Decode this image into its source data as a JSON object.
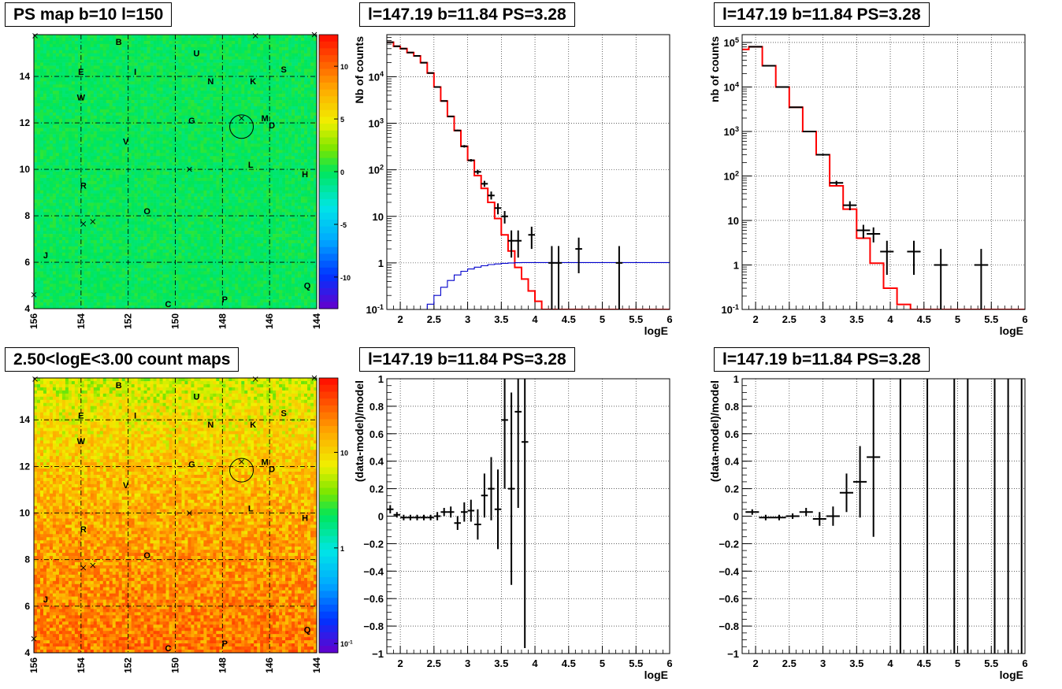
{
  "panels": {
    "map_top": {
      "title": "PS map b=10 l=150"
    },
    "spec_top": {
      "title": "l=147.19 b=11.84 PS=3.28"
    },
    "spec_top_right": {
      "title": "l=147.19 b=11.84 PS=3.28"
    },
    "map_bottom": {
      "title": "2.50<logE<3.00 count maps"
    },
    "ratio_bottom": {
      "title": "l=147.19 b=11.84 PS=3.28"
    },
    "ratio_bottom_right": {
      "title": "l=147.19 b=11.84 PS=3.28"
    }
  },
  "colors": {
    "model_line": "#ff0000",
    "acceptance_line": "#0000cc",
    "data_points": "#000000",
    "grid": "#000000"
  },
  "chart_data": [
    {
      "id": "map_top",
      "type": "heatmap",
      "title": "PS map b=10 l=150",
      "x_ticks": [
        "156",
        "154",
        "152",
        "150",
        "148",
        "146",
        "144"
      ],
      "y_ticks": [
        "4",
        "6",
        "8",
        "10",
        "12",
        "14"
      ],
      "xlim": [
        156,
        144
      ],
      "ylim": [
        4,
        15.8
      ],
      "color_scale": "linear",
      "zlim": [
        -13,
        13
      ],
      "z_ticks": [
        "10",
        "5",
        "0",
        "-5",
        "-10"
      ],
      "z_tick_values": [
        10,
        5,
        0,
        -5,
        -10
      ],
      "background_value": 0,
      "labels": [
        {
          "t": "B",
          "l": 152.4,
          "b": 15.5
        },
        {
          "t": "U",
          "l": 149.1,
          "b": 15.0
        },
        {
          "t": "S",
          "l": 145.4,
          "b": 14.3
        },
        {
          "t": "E",
          "l": 154.0,
          "b": 14.2
        },
        {
          "t": "I",
          "l": 151.7,
          "b": 14.2
        },
        {
          "t": "N",
          "l": 148.5,
          "b": 13.8
        },
        {
          "t": "K",
          "l": 146.7,
          "b": 13.8
        },
        {
          "t": "W",
          "l": 154.0,
          "b": 13.1
        },
        {
          "t": "G",
          "l": 149.3,
          "b": 12.1
        },
        {
          "t": "M",
          "l": 146.2,
          "b": 12.2
        },
        {
          "t": "D",
          "l": 145.9,
          "b": 11.9
        },
        {
          "t": "V",
          "l": 152.1,
          "b": 11.2
        },
        {
          "t": "L",
          "l": 146.8,
          "b": 10.2
        },
        {
          "t": "H",
          "l": 144.5,
          "b": 9.8
        },
        {
          "t": "R",
          "l": 153.9,
          "b": 9.3
        },
        {
          "t": "O",
          "l": 151.2,
          "b": 8.2
        },
        {
          "t": "J",
          "l": 155.5,
          "b": 6.3
        },
        {
          "t": "Q",
          "l": 144.4,
          "b": 5.0
        },
        {
          "t": "C",
          "l": 150.3,
          "b": 4.2
        },
        {
          "t": "P",
          "l": 147.9,
          "b": 4.4
        }
      ],
      "crosses": [
        {
          "l": 155.95,
          "b": 15.75
        },
        {
          "l": 146.6,
          "b": 15.75
        },
        {
          "l": 144.1,
          "b": 15.8
        },
        {
          "l": 149.4,
          "b": 10.0
        },
        {
          "l": 153.9,
          "b": 7.65
        },
        {
          "l": 153.5,
          "b": 7.75
        },
        {
          "l": 156.0,
          "b": 4.6
        },
        {
          "l": 147.19,
          "b": 12.2
        }
      ],
      "circle": {
        "l": 147.19,
        "b": 11.84,
        "r": 0.5
      }
    },
    {
      "id": "spec_top",
      "type": "line",
      "title": "l=147.19 b=11.84 PS=3.28",
      "xlabel": "logE",
      "ylabel": "Nb of counts",
      "xlim": [
        1.8,
        6.0
      ],
      "ylim": [
        0.1,
        80000
      ],
      "yscale": "log",
      "x_ticks": [
        "2",
        "2.5",
        "3",
        "3.5",
        "4",
        "4.5",
        "5",
        "5.5",
        "6"
      ],
      "y_ticks": [
        "10^{-1}",
        "1",
        "10",
        "10^{2}",
        "10^{3}",
        "10^{4}"
      ],
      "series": [
        {
          "style": "step",
          "color": "#ff0000",
          "edges": [
            1.8,
            1.9,
            2.0,
            2.1,
            2.2,
            2.3,
            2.4,
            2.5,
            2.6,
            2.7,
            2.8,
            2.9,
            3.0,
            3.1,
            3.2,
            3.3,
            3.4,
            3.5,
            3.6,
            3.7,
            3.8,
            3.9,
            4.0,
            4.1,
            4.2,
            4.3,
            6.0
          ],
          "values": [
            55000,
            45000,
            40000,
            33000,
            28000,
            20000,
            12000,
            6000,
            3000,
            1400,
            700,
            320,
            160,
            75,
            40,
            20,
            9,
            4,
            1.8,
            0.8,
            0.45,
            0.25,
            0.15,
            0.1,
            0.1,
            0.1
          ]
        },
        {
          "style": "step",
          "color": "#0000cc",
          "edges": [
            1.8,
            2.3,
            2.4,
            2.5,
            2.6,
            2.7,
            2.8,
            2.9,
            3.0,
            3.1,
            3.2,
            3.3,
            3.4,
            3.5,
            3.6,
            3.7,
            3.8,
            3.9,
            6.0
          ],
          "values": [
            0.08,
            0.1,
            0.13,
            0.2,
            0.3,
            0.42,
            0.55,
            0.66,
            0.74,
            0.81,
            0.87,
            0.92,
            0.95,
            0.98,
            1.0,
            1.01,
            1.02,
            1.02
          ]
        },
        {
          "style": "points",
          "color": "#000000",
          "x": [
            1.85,
            1.95,
            2.05,
            2.15,
            2.25,
            2.35,
            2.45,
            2.55,
            2.65,
            2.75,
            2.85,
            2.95,
            3.05,
            3.15,
            3.25,
            3.35,
            3.45,
            3.55,
            3.65,
            3.75,
            3.95,
            4.25,
            4.35,
            4.65,
            5.25
          ],
          "y": [
            55000,
            45000,
            40000,
            33000,
            28000,
            20000,
            12000,
            6000,
            3000,
            1400,
            700,
            320,
            160,
            90,
            50,
            28,
            15,
            10,
            3,
            3,
            4,
            1,
            1,
            2,
            1
          ],
          "ylo": [
            53000,
            43500,
            38500,
            32000,
            27000,
            19500,
            11600,
            5800,
            2900,
            1350,
            670,
            300,
            150,
            80,
            43,
            23,
            11,
            7,
            1.3,
            1.3,
            2,
            0.01,
            0.01,
            0.6,
            0.01
          ],
          "yhi": [
            57000,
            46500,
            41500,
            34000,
            29000,
            20500,
            12400,
            6200,
            3100,
            1450,
            730,
            340,
            170,
            100,
            58,
            34,
            19,
            13,
            5,
            5,
            6,
            2.3,
            2.3,
            3.5,
            2.3
          ],
          "xerr": 0.05
        }
      ]
    },
    {
      "id": "spec_top_right",
      "type": "line",
      "title": "l=147.19 b=11.84 PS=3.28",
      "xlabel": "logE",
      "ylabel": "nb of counts",
      "xlim": [
        1.8,
        6.0
      ],
      "ylim": [
        0.1,
        150000
      ],
      "yscale": "log",
      "x_ticks": [
        "2",
        "2.5",
        "3",
        "3.5",
        "4",
        "4.5",
        "5",
        "5.5",
        "6"
      ],
      "y_ticks": [
        "10^{-1}",
        "1",
        "10",
        "10^{2}",
        "10^{3}",
        "10^{4}",
        "10^{5}"
      ],
      "series": [
        {
          "style": "step",
          "color": "#ff0000",
          "edges": [
            1.8,
            1.9,
            2.1,
            2.3,
            2.5,
            2.7,
            2.9,
            3.1,
            3.3,
            3.5,
            3.7,
            3.9,
            4.1,
            4.3,
            4.5,
            4.7,
            6.0
          ],
          "values": [
            70000,
            80000,
            30000,
            10000,
            3500,
            1000,
            300,
            60,
            18,
            4,
            1.1,
            0.3,
            0.13,
            0.1,
            0.1,
            0.1
          ]
        },
        {
          "style": "points",
          "color": "#000000",
          "x": [
            2.0,
            2.2,
            2.4,
            2.6,
            2.8,
            3.0,
            3.2,
            3.4,
            3.6,
            3.75,
            3.95,
            4.35,
            4.75,
            5.35
          ],
          "y": [
            80000,
            30000,
            10000,
            3500,
            1000,
            300,
            70,
            22,
            6,
            5,
            2,
            2,
            1,
            1
          ],
          "ylo": [
            78000,
            29500,
            9800,
            3400,
            970,
            285,
            62,
            17,
            4,
            3.2,
            0.6,
            0.6,
            0.01,
            0.01
          ],
          "yhi": [
            82000,
            30500,
            10200,
            3600,
            1030,
            315,
            78,
            27,
            8,
            7,
            3.5,
            3.5,
            2.3,
            2.3
          ],
          "xerr": 0.1
        }
      ]
    },
    {
      "id": "map_bottom",
      "type": "heatmap",
      "title": "2.50<logE<3.00 count maps",
      "x_ticks": [
        "156",
        "154",
        "152",
        "150",
        "148",
        "146",
        "144"
      ],
      "y_ticks": [
        "4",
        "6",
        "8",
        "10",
        "12",
        "14"
      ],
      "xlim": [
        156,
        144
      ],
      "ylim": [
        4,
        15.8
      ],
      "color_scale": "log",
      "zlim": [
        0.08,
        60
      ],
      "z_ticks": [
        "10",
        "1",
        "10^{-1}"
      ],
      "z_tick_values": [
        10,
        1,
        0.1
      ],
      "count_range_top": [
        3,
        9
      ],
      "count_range_bottom": [
        12,
        40
      ],
      "labels": [
        {
          "t": "B",
          "l": 152.4,
          "b": 15.5
        },
        {
          "t": "U",
          "l": 149.1,
          "b": 15.0
        },
        {
          "t": "S",
          "l": 145.4,
          "b": 14.3
        },
        {
          "t": "E",
          "l": 154.0,
          "b": 14.2
        },
        {
          "t": "I",
          "l": 151.7,
          "b": 14.2
        },
        {
          "t": "N",
          "l": 148.5,
          "b": 13.8
        },
        {
          "t": "K",
          "l": 146.7,
          "b": 13.8
        },
        {
          "t": "W",
          "l": 154.0,
          "b": 13.1
        },
        {
          "t": "G",
          "l": 149.3,
          "b": 12.1
        },
        {
          "t": "M",
          "l": 146.2,
          "b": 12.2
        },
        {
          "t": "D",
          "l": 145.9,
          "b": 11.9
        },
        {
          "t": "V",
          "l": 152.1,
          "b": 11.2
        },
        {
          "t": "L",
          "l": 146.8,
          "b": 10.2
        },
        {
          "t": "H",
          "l": 144.5,
          "b": 9.8
        },
        {
          "t": "R",
          "l": 153.9,
          "b": 9.3
        },
        {
          "t": "O",
          "l": 151.2,
          "b": 8.2
        },
        {
          "t": "J",
          "l": 155.5,
          "b": 6.3
        },
        {
          "t": "Q",
          "l": 144.4,
          "b": 5.0
        },
        {
          "t": "C",
          "l": 150.3,
          "b": 4.2
        },
        {
          "t": "P",
          "l": 147.9,
          "b": 4.4
        }
      ],
      "crosses": [
        {
          "l": 155.95,
          "b": 15.75
        },
        {
          "l": 146.6,
          "b": 15.75
        },
        {
          "l": 144.1,
          "b": 15.8
        },
        {
          "l": 149.4,
          "b": 10.0
        },
        {
          "l": 153.9,
          "b": 7.65
        },
        {
          "l": 153.5,
          "b": 7.75
        },
        {
          "l": 156.0,
          "b": 4.6
        },
        {
          "l": 147.19,
          "b": 12.2
        }
      ],
      "circle": {
        "l": 147.19,
        "b": 11.84,
        "r": 0.5
      }
    },
    {
      "id": "ratio_bottom",
      "type": "scatter",
      "title": "l=147.19 b=11.84 PS=3.28",
      "xlabel": "logE",
      "ylabel": "(data-model)/model",
      "xlim": [
        1.8,
        6.0
      ],
      "ylim": [
        -1,
        1
      ],
      "x_ticks": [
        "2",
        "2.5",
        "3",
        "3.5",
        "4",
        "4.5",
        "5",
        "5.5",
        "6"
      ],
      "y_ticks": [
        "−1",
        "−0.8",
        "−0.6",
        "−0.4",
        "−0.2",
        "0",
        "0.2",
        "0.4",
        "0.6",
        "0.8",
        "1"
      ],
      "series": [
        {
          "style": "points",
          "color": "#000000",
          "x": [
            1.85,
            1.95,
            2.05,
            2.15,
            2.25,
            2.35,
            2.45,
            2.55,
            2.65,
            2.75,
            2.85,
            2.95,
            3.05,
            3.15,
            3.25,
            3.35,
            3.45,
            3.55,
            3.65,
            3.75,
            3.85
          ],
          "y": [
            0.05,
            0.01,
            -0.01,
            -0.01,
            -0.01,
            -0.01,
            -0.01,
            0.0,
            0.03,
            0.03,
            -0.05,
            0.03,
            0.04,
            -0.06,
            0.15,
            0.2,
            0.05,
            0.7,
            0.2,
            0.76,
            0.54
          ],
          "yerr": [
            0.03,
            0.02,
            0.02,
            0.02,
            0.02,
            0.02,
            0.02,
            0.03,
            0.03,
            0.04,
            0.05,
            0.07,
            0.08,
            0.11,
            0.16,
            0.23,
            0.29,
            0.5,
            0.7,
            0.7,
            1.5
          ],
          "xerr": 0.05
        }
      ]
    },
    {
      "id": "ratio_bottom_right",
      "type": "scatter",
      "title": "l=147.19 b=11.84 PS=3.28",
      "xlabel": "logE",
      "ylabel": "(data-model)/model",
      "xlim": [
        1.8,
        6.0
      ],
      "ylim": [
        -1,
        1
      ],
      "x_ticks": [
        "2",
        "2.5",
        "3",
        "3.5",
        "4",
        "4.5",
        "5",
        "5.5",
        "6"
      ],
      "y_ticks": [
        "−1",
        "−0.8",
        "−0.6",
        "−0.4",
        "−0.2",
        "0",
        "0.2",
        "0.4",
        "0.6",
        "0.8",
        "1"
      ],
      "series": [
        {
          "style": "points",
          "color": "#000000",
          "x": [
            1.95,
            2.15,
            2.35,
            2.55,
            2.75,
            2.95,
            3.15,
            3.35,
            3.55,
            3.75
          ],
          "y": [
            0.03,
            -0.01,
            -0.01,
            0.0,
            0.03,
            -0.02,
            0.0,
            0.17,
            0.25,
            0.43
          ],
          "yerr": [
            0.02,
            0.02,
            0.02,
            0.02,
            0.03,
            0.05,
            0.07,
            0.14,
            0.26,
            0.58
          ],
          "xerr": 0.1
        },
        {
          "style": "vlines",
          "color": "#000000",
          "x": [
            4.15,
            4.55,
            4.95,
            5.15,
            5.55,
            5.75,
            5.95
          ]
        }
      ]
    }
  ]
}
